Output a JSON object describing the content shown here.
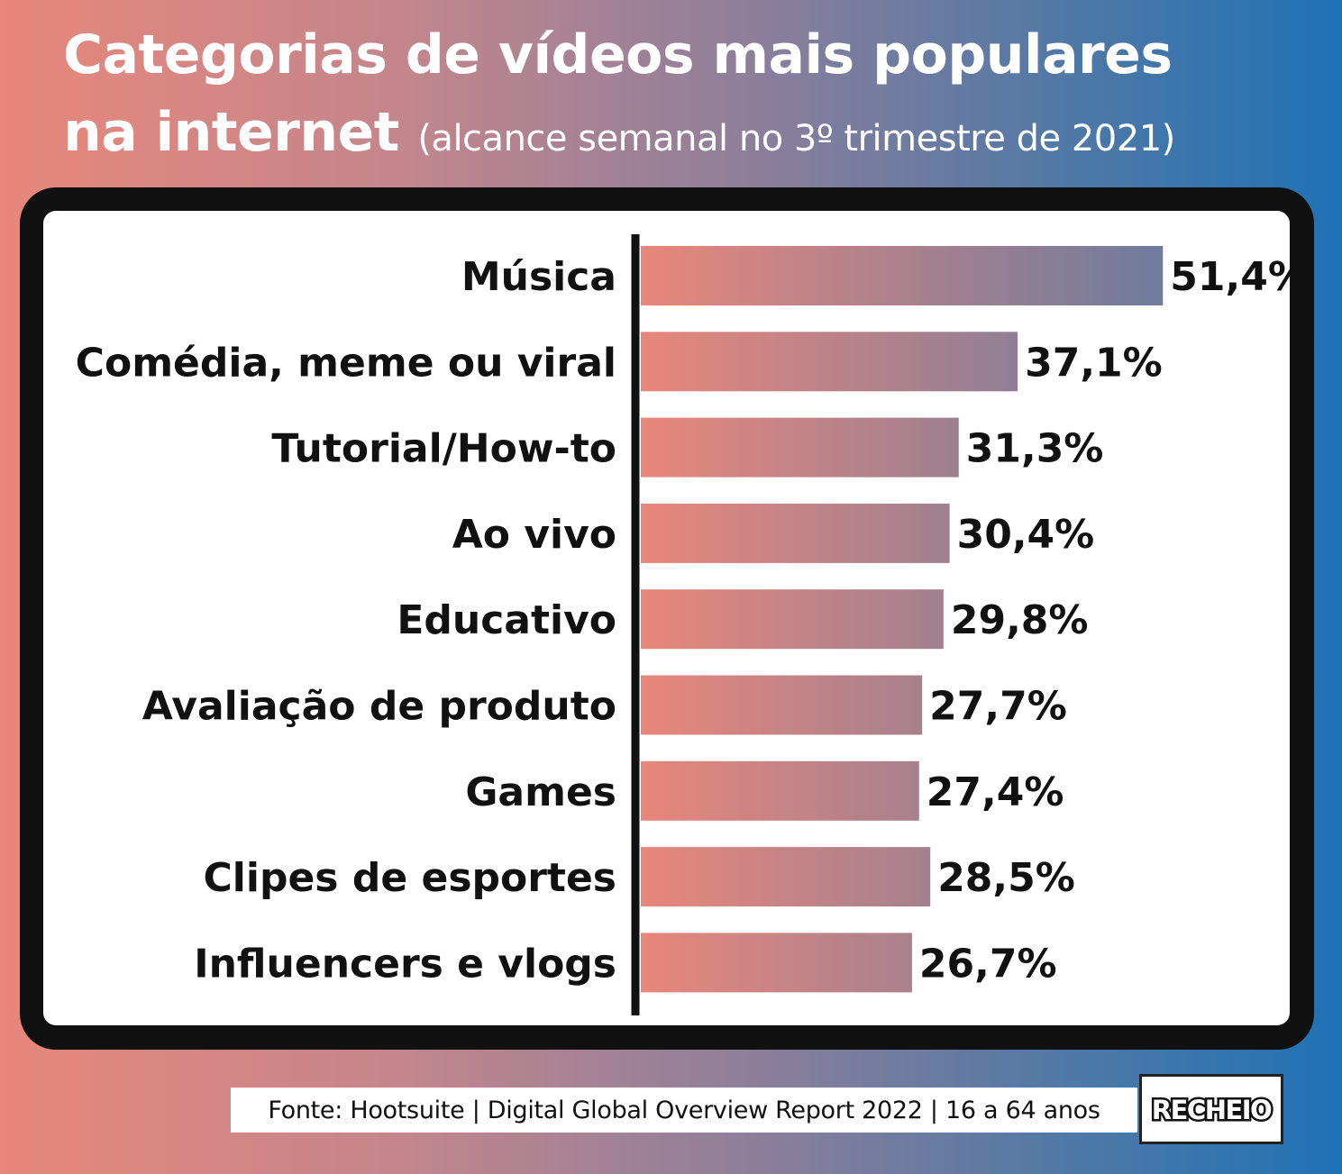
{
  "header": {
    "title_line1": "Categorias de vídeos mais populares",
    "title_line2": "na internet",
    "subtitle": "(alcance semanal no 3º trimestre de 2021)"
  },
  "chart_data": {
    "type": "bar",
    "orientation": "horizontal",
    "title": "Categorias de vídeos mais populares na internet",
    "subtitle": "(alcance semanal no 3º trimestre de 2021)",
    "categories": [
      "Música",
      "Comédia, meme ou viral",
      "Tutorial/How-to",
      "Ao vivo",
      "Educativo",
      "Avaliação de produto",
      "Games",
      "Clipes de esportes",
      "Influencers e vlogs"
    ],
    "values": [
      51.4,
      37.1,
      31.3,
      30.4,
      29.8,
      27.7,
      27.4,
      28.5,
      26.7
    ],
    "value_labels": [
      "51,4%",
      "37,1%",
      "31,3%",
      "30,4%",
      "29,8%",
      "27,7%",
      "27,4%",
      "28,5%",
      "26,7%"
    ],
    "unit": "%",
    "grid": false,
    "legend": "none",
    "bar_gradient": [
      "#e8877b",
      "#6f7b9e"
    ]
  },
  "footer": {
    "source": "Fonte: Hootsuite | Digital Global Overview Report 2022 | 16 a 64 anos",
    "logo_text": "RECHEIO"
  }
}
